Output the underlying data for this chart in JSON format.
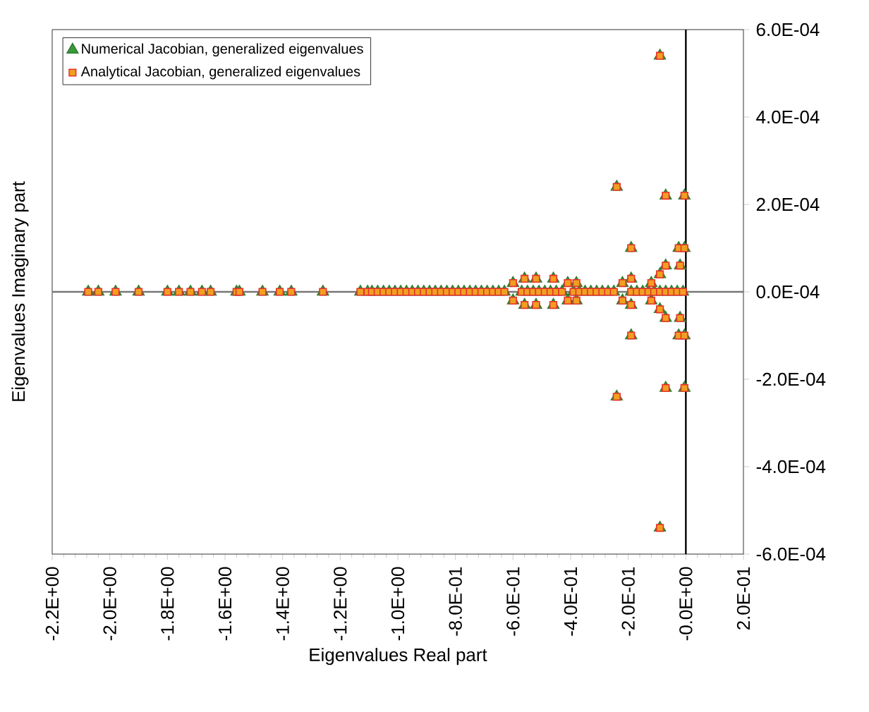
{
  "chart_data": {
    "type": "scatter",
    "xlabel": "Eigenvalues Real part",
    "ylabel": "Eigenvalues Imaginary part",
    "x": [
      -2.075,
      -2.04,
      -1.98,
      -1.9,
      -1.8,
      -1.76,
      -1.72,
      -1.68,
      -1.65,
      -1.56,
      -1.55,
      -1.47,
      -1.41,
      -1.37,
      -1.26,
      -1.13,
      -1.105,
      -1.09,
      -1.07,
      -1.05,
      -1.03,
      -1.01,
      -0.99,
      -0.97,
      -0.95,
      -0.93,
      -0.91,
      -0.89,
      -0.87,
      -0.85,
      -0.83,
      -0.81,
      -0.79,
      -0.77,
      -0.75,
      -0.73,
      -0.71,
      -0.69,
      -0.67,
      -0.65,
      -0.63,
      -0.57,
      -0.55,
      -0.53,
      -0.51,
      -0.49,
      -0.47,
      -0.45,
      -0.43,
      -0.39,
      -0.37,
      -0.35,
      -0.33,
      -0.31,
      -0.29,
      -0.27,
      -0.25,
      -0.19,
      -0.17,
      -0.15,
      -0.13,
      -0.11,
      -0.09,
      -0.07,
      -0.05,
      -0.03,
      -0.01,
      -0.09,
      -0.09,
      -0.24,
      -0.24,
      -0.07,
      -0.07,
      -0.005,
      -0.005,
      -0.19,
      -0.19,
      -0.025,
      -0.025,
      -0.005,
      -0.005,
      -0.02,
      -0.02,
      -0.07,
      -0.07,
      -0.09,
      -0.09,
      -0.6,
      -0.6,
      -0.56,
      -0.56,
      -0.52,
      -0.52,
      -0.46,
      -0.46,
      -0.41,
      -0.41,
      -0.38,
      -0.38,
      -0.19,
      -0.19,
      -0.22,
      -0.22,
      -0.12,
      -0.12
    ],
    "series": [
      {
        "name": "Numerical Jacobian, generalized eigenvalues",
        "color": "#3a9a3a",
        "marker": "triangle",
        "values": [
          0,
          0,
          0,
          0,
          0,
          0,
          0,
          0,
          0,
          0,
          0,
          0,
          0,
          0,
          0,
          0,
          0,
          0,
          0,
          0,
          0,
          0,
          0,
          0,
          0,
          0,
          0,
          0,
          0,
          0,
          0,
          0,
          0,
          0,
          0,
          0,
          0,
          0,
          0,
          0,
          0,
          0,
          0,
          0,
          0,
          0,
          0,
          0,
          0,
          0,
          0,
          0,
          0,
          0,
          0,
          0,
          0,
          0,
          0,
          0,
          0,
          0,
          0,
          0,
          0,
          0,
          0,
          0.00054,
          -0.00054,
          0.00024,
          -0.00024,
          0.00022,
          -0.00022,
          0.00022,
          -0.00022,
          0.0001,
          -0.0001,
          0.0001,
          -0.0001,
          0.0001,
          -0.0001,
          6e-05,
          -6e-05,
          6e-05,
          -6e-05,
          4e-05,
          -4e-05,
          2e-05,
          -2e-05,
          3e-05,
          -3e-05,
          3e-05,
          -3e-05,
          3e-05,
          -3e-05,
          2e-05,
          -2e-05,
          2e-05,
          -2e-05,
          3e-05,
          -3e-05,
          2e-05,
          -2e-05,
          2e-05,
          -2e-05
        ]
      },
      {
        "name": "Analytical Jacobian, generalized eigenvalues",
        "color": "#f0a020",
        "marker": "square",
        "values": [
          0,
          0,
          0,
          0,
          0,
          0,
          0,
          0,
          0,
          0,
          0,
          0,
          0,
          0,
          0,
          0,
          0,
          0,
          0,
          0,
          0,
          0,
          0,
          0,
          0,
          0,
          0,
          0,
          0,
          0,
          0,
          0,
          0,
          0,
          0,
          0,
          0,
          0,
          0,
          0,
          0,
          0,
          0,
          0,
          0,
          0,
          0,
          0,
          0,
          0,
          0,
          0,
          0,
          0,
          0,
          0,
          0,
          0,
          0,
          0,
          0,
          0,
          0,
          0,
          0,
          0,
          0,
          0.00054,
          -0.00054,
          0.00024,
          -0.00024,
          0.00022,
          -0.00022,
          0.00022,
          -0.00022,
          0.0001,
          -0.0001,
          0.0001,
          -0.0001,
          0.0001,
          -0.0001,
          6e-05,
          -6e-05,
          6e-05,
          -6e-05,
          4e-05,
          -4e-05,
          2e-05,
          -2e-05,
          3e-05,
          -3e-05,
          3e-05,
          -3e-05,
          3e-05,
          -3e-05,
          2e-05,
          -2e-05,
          2e-05,
          -2e-05,
          3e-05,
          -3e-05,
          2e-05,
          -2e-05,
          2e-05,
          -2e-05
        ]
      }
    ],
    "xlim": [
      -2.2,
      0.2
    ],
    "xticks": [
      {
        "value": -2.2,
        "label": "-2.2E+00"
      },
      {
        "value": -2.0,
        "label": "-2.0E+00"
      },
      {
        "value": -1.8,
        "label": "-1.8E+00"
      },
      {
        "value": -1.6,
        "label": "-1.6E+00"
      },
      {
        "value": -1.4,
        "label": "-1.4E+00"
      },
      {
        "value": -1.2,
        "label": "-1.2E+00"
      },
      {
        "value": -1.0,
        "label": "-1.0E+00"
      },
      {
        "value": -0.8,
        "label": "-8.0E-01"
      },
      {
        "value": -0.6,
        "label": "-6.0E-01"
      },
      {
        "value": -0.4,
        "label": "-4.0E-01"
      },
      {
        "value": -0.2,
        "label": "-2.0E-01"
      },
      {
        "value": 0,
        "label": "-0.0E+00"
      },
      {
        "value": 0.2,
        "label": "2.0E-01"
      }
    ],
    "ylim": [
      -0.0006,
      0.0006
    ],
    "yticks": [
      {
        "value": -0.0006,
        "label": "-6.0E-04"
      },
      {
        "value": -0.0004,
        "label": "-4.0E-04"
      },
      {
        "value": -0.0002,
        "label": "-2.0E-04"
      },
      {
        "value": 0,
        "label": "0.0E-04"
      },
      {
        "value": 0.0002,
        "label": "2.0E-04"
      },
      {
        "value": 0.0004,
        "label": "4.0E-04"
      },
      {
        "value": 0.0006,
        "label": "6.0E-04"
      }
    ],
    "ref_lines": [
      {
        "axis": "y",
        "value": 0,
        "color": "#777777"
      },
      {
        "axis": "x",
        "value": 0,
        "color": "#000000"
      }
    ],
    "grid": false,
    "legend": "top left"
  }
}
